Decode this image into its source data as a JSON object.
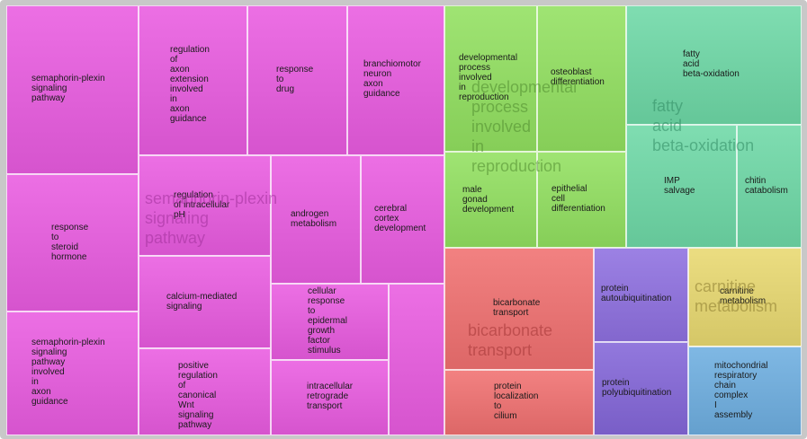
{
  "chart_data": {
    "type": "treemap",
    "groups": [
      {
        "name": "semaphorin-plexin signaling pathway",
        "color": "#e95be0",
        "items": [
          {
            "label": "semaphorin-plexin signaling pathway",
            "value": 7.1
          },
          {
            "label": "response to steroid hormone",
            "value": 7.1
          },
          {
            "label": "semaphorin-plexin signaling pathway involved in axon guidance",
            "value": 7.1
          },
          {
            "label": "regulation of axon extension involved in axon guidance",
            "value": 5.4
          },
          {
            "label": "response to drug",
            "value": 5.4
          },
          {
            "label": "branchiomotor neuron axon guidance",
            "value": 5.4
          },
          {
            "label": "regulation of intracellular pH",
            "value": 4.0
          },
          {
            "label": "calcium-mediated signaling",
            "value": 3.6
          },
          {
            "label": "positive regulation of canonical Wnt signaling pathway",
            "value": 3.6
          },
          {
            "label": "androgen metabolism",
            "value": 3.5
          },
          {
            "label": "cerebral cortex development",
            "value": 2.9
          },
          {
            "label": "cellular response to epidermal growth factor stimulus",
            "value": 3.0
          },
          {
            "label": "intracellular retrograde transport",
            "value": 3.0
          },
          {
            "label": "",
            "value": 2.2
          }
        ]
      },
      {
        "name": "developmental process involved in reproduction",
        "color": "#92e060",
        "items": [
          {
            "label": "developmental process involved in reproduction",
            "value": 3.5
          },
          {
            "label": "osteoblast differentiation",
            "value": 3.4
          },
          {
            "label": "male gonad development",
            "value": 2.9
          },
          {
            "label": "epithelial cell differentiation",
            "value": 2.9
          }
        ]
      },
      {
        "name": "fatty acid beta-oxidation",
        "color": "#6ed8a6",
        "items": [
          {
            "label": "fatty acid beta-oxidation",
            "value": 4.2
          },
          {
            "label": "IMP salvage",
            "value": 3.5
          },
          {
            "label": "chitin catabolism",
            "value": 2.1
          }
        ]
      },
      {
        "name": "bicarbonate transport",
        "color": "#f07070",
        "items": [
          {
            "label": "bicarbonate transport",
            "value": 4.9
          },
          {
            "label": "protein localization to cilium",
            "value": 2.2
          }
        ]
      },
      {
        "name": "protein autoubiquitination",
        "color": "#8e70e0",
        "items": [
          {
            "label": "protein autoubiquitination",
            "value": 3.1
          }
        ]
      },
      {
        "name": "protein polyubiquitination",
        "color": "#8366d8",
        "items": [
          {
            "label": "protein polyubiquitination",
            "value": 3.1
          }
        ]
      },
      {
        "name": "carnitine metabolism",
        "color": "#e8d870",
        "items": [
          {
            "label": "carnitine metabolism",
            "value": 3.1
          }
        ]
      },
      {
        "name": "mitochondrial respiratory chain complex I assembly",
        "color": "#6eaee0",
        "items": [
          {
            "label": "mitochondrial respiratory chain complex I assembly",
            "value": 2.9
          }
        ]
      }
    ]
  }
}
